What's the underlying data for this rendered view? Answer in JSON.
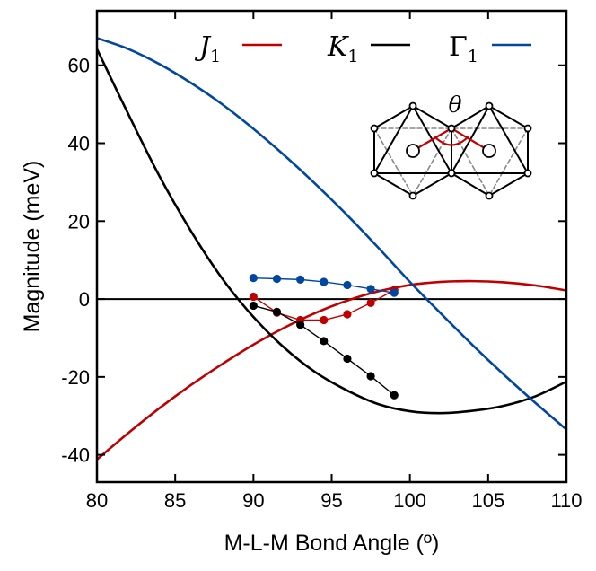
{
  "chart_data": {
    "type": "line",
    "xlabel": "M-L-M Bond Angle (º)",
    "ylabel": "Magnitude (meV)",
    "xlim": [
      80,
      110
    ],
    "ylim": [
      -47,
      74
    ],
    "xticks": [
      80,
      85,
      90,
      95,
      100,
      105,
      110
    ],
    "yticks": [
      -40,
      -20,
      0,
      20,
      40,
      60
    ],
    "ytick_labels": [
      "-40",
      "-20",
      "0",
      "20",
      "40",
      "60"
    ],
    "grid": false,
    "legend_position": "top",
    "legend": [
      {
        "symbol": "J",
        "sub": "1",
        "color": "#c00000",
        "italic": true
      },
      {
        "symbol": "K",
        "sub": "1",
        "color": "#000000",
        "italic": true
      },
      {
        "symbol": "Γ",
        "sub": "1",
        "color": "#0047a0",
        "italic": false
      }
    ],
    "series": [
      {
        "name": "J1",
        "kind": "curve",
        "color": "#c00000",
        "x": [
          80,
          82,
          84,
          86,
          88,
          90,
          92,
          94,
          96,
          98,
          100,
          102,
          104,
          106,
          108,
          110
        ],
        "y": [
          -41.2,
          -34.4,
          -28.0,
          -22.1,
          -16.7,
          -11.7,
          -7.3,
          -3.5,
          -0.4,
          2.0,
          3.6,
          4.4,
          4.6,
          4.3,
          3.5,
          2.2
        ]
      },
      {
        "name": "K1",
        "kind": "curve",
        "color": "#000000",
        "x": [
          80,
          82,
          84,
          86,
          88,
          90,
          92,
          94,
          96,
          98,
          100,
          102,
          104,
          106,
          108,
          110
        ],
        "y": [
          64.2,
          47.5,
          31.5,
          17.5,
          5.3,
          -4.6,
          -12.6,
          -18.9,
          -23.5,
          -27.0,
          -28.8,
          -29.3,
          -28.7,
          -27.4,
          -25.0,
          -21.2
        ]
      },
      {
        "name": "Γ1",
        "kind": "curve",
        "color": "#0047a0",
        "x": [
          80,
          82,
          84,
          86,
          88,
          90,
          92,
          94,
          96,
          98,
          100,
          102,
          104,
          106,
          108,
          110
        ],
        "y": [
          67.0,
          64.2,
          60.3,
          55.5,
          50.0,
          43.7,
          36.8,
          29.4,
          21.5,
          13.1,
          4.4,
          -3.8,
          -11.8,
          -19.4,
          -26.6,
          -33.5
        ]
      },
      {
        "name": "J1",
        "kind": "points",
        "color": "#c00000",
        "x": [
          90,
          91.5,
          93,
          94.5,
          96,
          97.5,
          99
        ],
        "y": [
          0.6,
          -3.5,
          -5.4,
          -5.4,
          -3.9,
          -1.0,
          2.3
        ]
      },
      {
        "name": "K1",
        "kind": "points",
        "color": "#000000",
        "x": [
          90,
          91.5,
          93,
          94.5,
          96,
          97.5,
          99
        ],
        "y": [
          -1.7,
          -3.3,
          -6.6,
          -10.8,
          -15.3,
          -19.8,
          -24.7
        ]
      },
      {
        "name": "Γ1",
        "kind": "points",
        "color": "#0047a0",
        "x": [
          90,
          91.5,
          93,
          94.5,
          96,
          97.5,
          99
        ],
        "y": [
          5.4,
          5.2,
          5.0,
          4.4,
          3.6,
          2.6,
          1.6
        ]
      }
    ],
    "annotations": {
      "zero_line": true,
      "inset_label": "θ"
    }
  }
}
